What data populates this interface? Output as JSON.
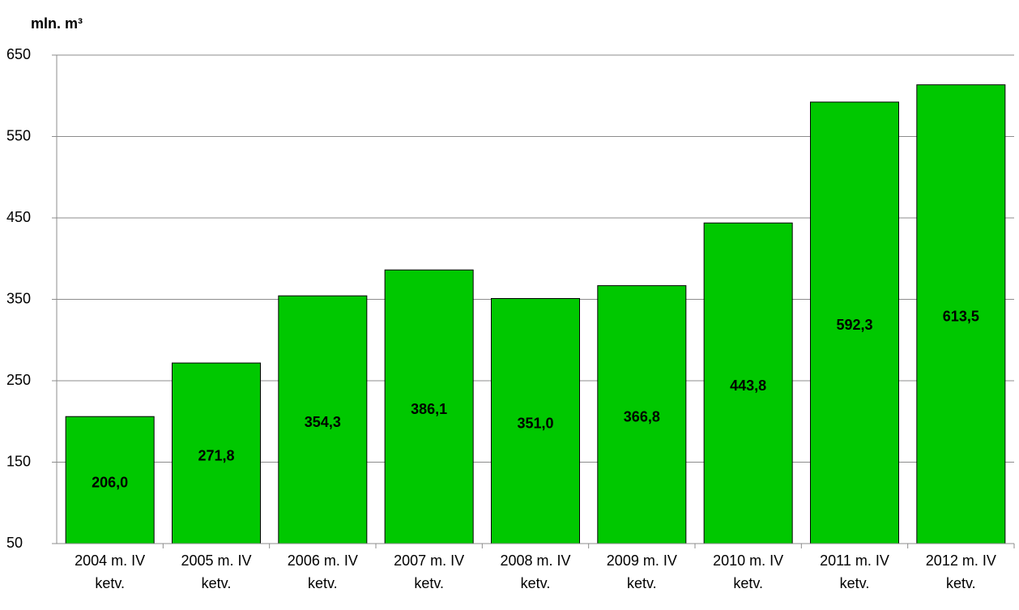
{
  "chart_data": {
    "type": "bar",
    "title": "mln. m³",
    "categories": [
      "2004 m. IV ketv.",
      "2005 m. IV ketv.",
      "2006 m. IV ketv.",
      "2007 m. IV ketv.",
      "2008 m. IV ketv.",
      "2009 m. IV ketv.",
      "2010 m. IV ketv.",
      "2011 m. IV ketv.",
      "2012 m. IV ketv."
    ],
    "values": [
      206.0,
      271.8,
      354.3,
      386.1,
      351.0,
      366.8,
      443.8,
      592.3,
      613.5
    ],
    "value_labels": [
      "206,0",
      "271,8",
      "354,3",
      "386,1",
      "351,0",
      "366,8",
      "443,8",
      "592,3",
      "613,5"
    ],
    "color": "#00c800",
    "ylim": [
      50,
      650
    ],
    "yticks": [
      50,
      150,
      250,
      350,
      450,
      550,
      650
    ],
    "grid": true
  }
}
